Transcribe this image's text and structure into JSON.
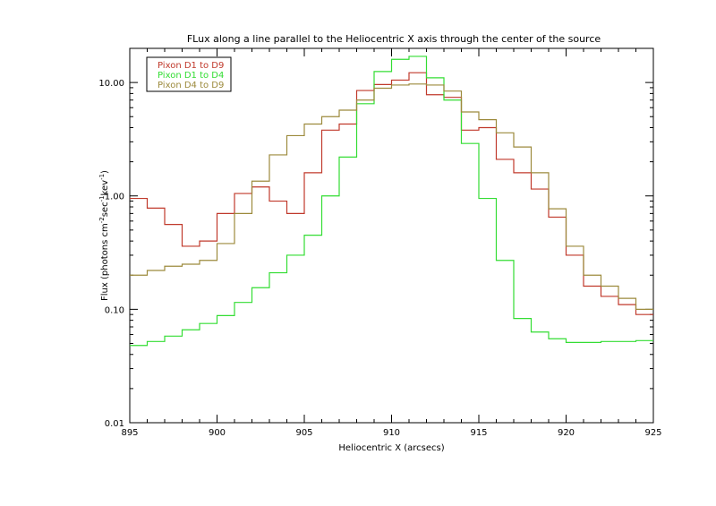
{
  "chart_data": {
    "type": "line",
    "title": "FLux along a line parallel to the Heliocentric X axis through the center of the source",
    "xlabel": "Heliocentric X (arcsecs)",
    "ylabel_parts": {
      "main": "Flux (photons cm",
      "sup1": "-2",
      "mid1": "sec",
      "sup2": "-1",
      "mid2": "kev",
      "sup3": "-1",
      "end": ")"
    },
    "xlim": [
      895,
      925
    ],
    "ylim": [
      0.01,
      20
    ],
    "yscale": "log",
    "x_ticks": [
      {
        "value": 895,
        "label": "895"
      },
      {
        "value": 900,
        "label": "900"
      },
      {
        "value": 905,
        "label": "905"
      },
      {
        "value": 910,
        "label": "910"
      },
      {
        "value": 915,
        "label": "915"
      },
      {
        "value": 920,
        "label": "920"
      },
      {
        "value": 925,
        "label": "925"
      }
    ],
    "y_ticks": [
      {
        "value": 0.01,
        "label": "0.01"
      },
      {
        "value": 0.1,
        "label": "0.10"
      },
      {
        "value": 1,
        "label": "1.00"
      },
      {
        "value": 10,
        "label": "10.00"
      }
    ],
    "legend_position": "top-left",
    "step_edges": [
      895,
      896,
      897,
      898,
      899,
      900,
      901,
      902,
      903,
      904,
      905,
      906,
      907,
      908,
      909,
      910,
      911,
      912,
      913,
      914,
      915,
      916,
      917,
      918,
      919,
      920,
      921,
      922,
      923,
      924,
      925
    ],
    "series": [
      {
        "name": "Pixon D1 to D9",
        "color": "#c0392b",
        "values": [
          0.95,
          0.78,
          0.56,
          0.36,
          0.4,
          0.7,
          1.05,
          1.2,
          0.9,
          0.7,
          1.6,
          3.8,
          4.3,
          8.5,
          9.6,
          10.5,
          12.2,
          7.8,
          7.4,
          3.8,
          4.0,
          2.1,
          1.6,
          1.15,
          0.65,
          0.3,
          0.16,
          0.13,
          0.11,
          0.09
        ]
      },
      {
        "name": "Pixon D1 to D4",
        "color": "#33dd33",
        "values": [
          0.048,
          0.052,
          0.058,
          0.066,
          0.075,
          0.088,
          0.115,
          0.155,
          0.21,
          0.3,
          0.45,
          1.0,
          2.2,
          6.5,
          12.5,
          16.0,
          17.0,
          11.0,
          7.0,
          2.9,
          0.95,
          0.27,
          0.083,
          0.063,
          0.055,
          0.051,
          0.051,
          0.052,
          0.052,
          0.053
        ]
      },
      {
        "name": "Pixon D4 to D9",
        "color": "#9c8a3c",
        "values": [
          0.2,
          0.22,
          0.24,
          0.25,
          0.27,
          0.38,
          0.7,
          1.35,
          2.3,
          3.4,
          4.3,
          5.0,
          5.7,
          7.0,
          8.9,
          9.5,
          9.7,
          9.5,
          8.4,
          5.5,
          4.7,
          3.6,
          2.7,
          1.6,
          0.77,
          0.36,
          0.2,
          0.16,
          0.125,
          0.1
        ]
      }
    ]
  }
}
